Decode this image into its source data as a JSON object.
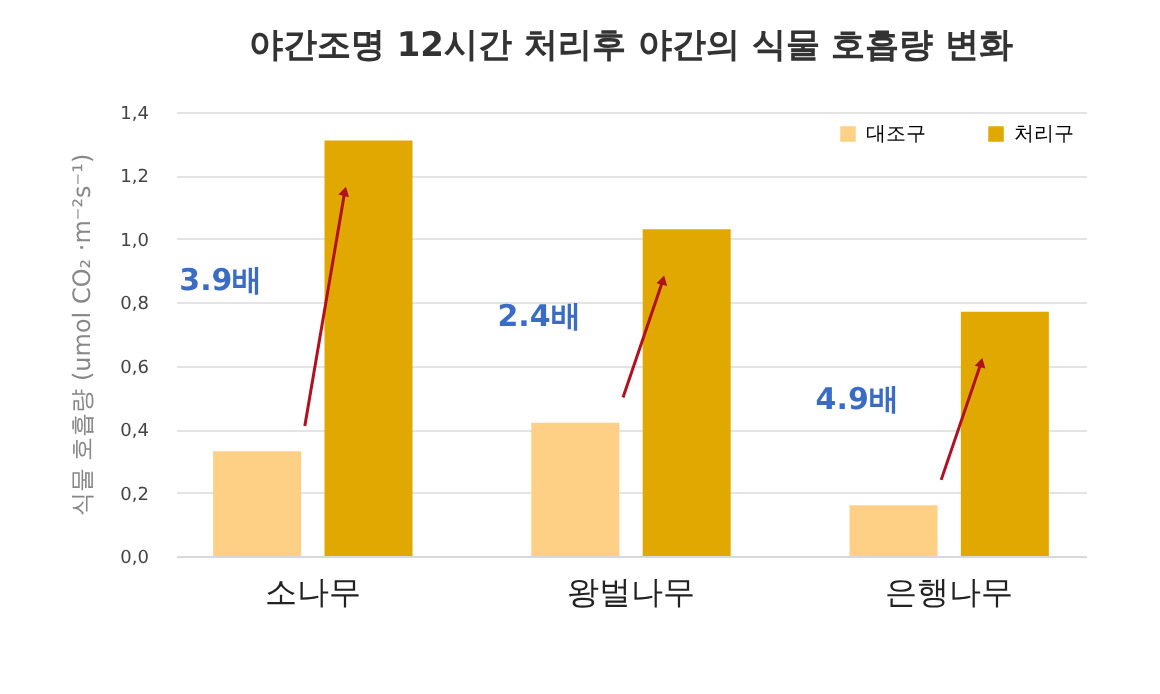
{
  "chart_data": {
    "type": "bar",
    "title": "야간조명 12시간 처리후 야간의 식물 호흡량 변화",
    "ylabel": "식물 호흡량 (umol CO₂ ·m⁻²s⁻¹)",
    "categories": [
      "소나무",
      "왕벌나무",
      "은행나무"
    ],
    "series": [
      {
        "name": "대조구",
        "color": "#fdd086",
        "values": [
          0.33,
          0.42,
          0.16
        ]
      },
      {
        "name": "처리구",
        "color": "#e0a800",
        "values": [
          1.31,
          1.03,
          0.77
        ]
      }
    ],
    "ylim": [
      0,
      1.4
    ],
    "yticks": [
      {
        "value": 0,
        "label": "0,0"
      },
      {
        "value": 0.2,
        "label": "0,2"
      },
      {
        "value": 0.4,
        "label": "0,4"
      },
      {
        "value": 0.6,
        "label": "0,6"
      },
      {
        "value": 0.8,
        "label": "0,8"
      },
      {
        "value": 1,
        "label": "1,0"
      },
      {
        "value": 1.2,
        "label": "1,2"
      },
      {
        "value": 1.4,
        "label": "1,4"
      }
    ],
    "grid": "y",
    "legend": "top right",
    "annotations": [
      "3.9배",
      "2.4배",
      "4.9배"
    ]
  }
}
